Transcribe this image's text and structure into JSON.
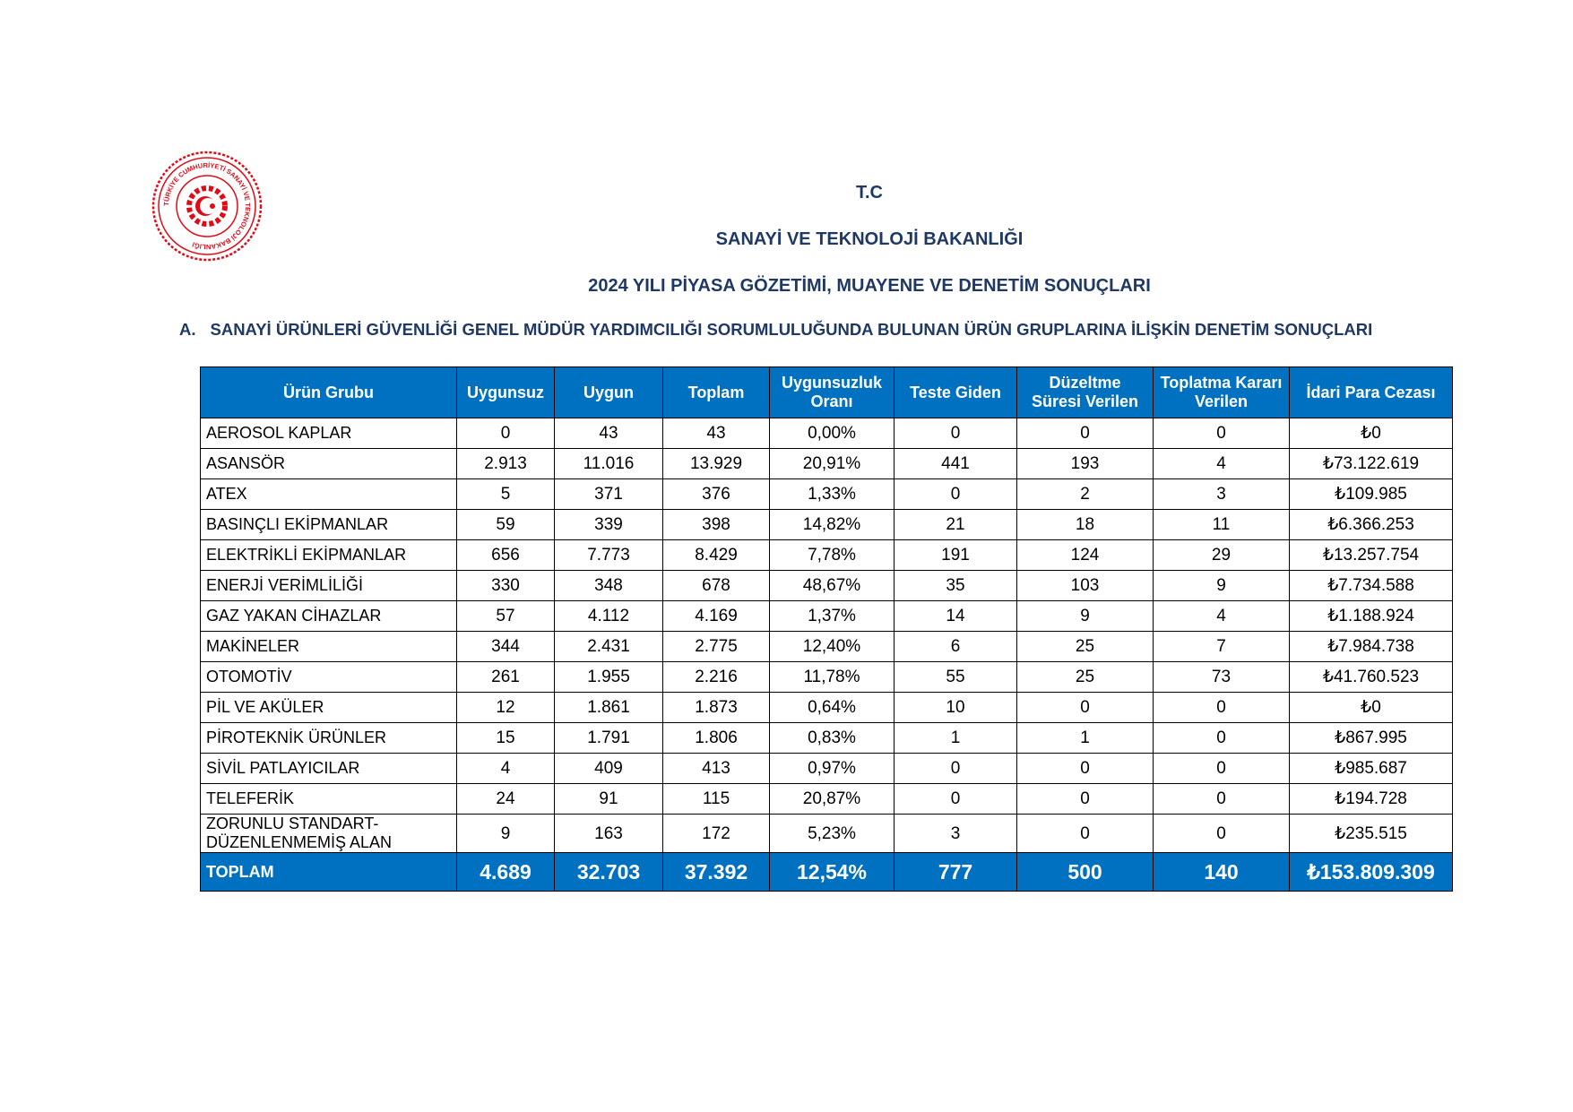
{
  "logo": {
    "text": "TÜRKİYE CUMHURİYETİ SANAYİ VE TEKNOLOJİ BAKANLIĞI"
  },
  "header": {
    "line1": "T.C",
    "line2": "SANAYİ VE TEKNOLOJİ BAKANLIĞI",
    "line3": "2024 YILI PİYASA GÖZETİMİ, MUAYENE VE DENETİM SONUÇLARI"
  },
  "section": {
    "number": "A.",
    "title": "SANAYİ ÜRÜNLERİ GÜVENLİĞİ GENEL MÜDÜR YARDIMCILIĞI SORUMLULUĞUNDA BULUNAN ÜRÜN GRUPLARINA İLİŞKİN DENETİM SONUÇLARI"
  },
  "table": {
    "columns": [
      "Ürün Grubu",
      "Uygunsuz",
      "Uygun",
      "Toplam",
      "Uygunsuzluk Oranı",
      "Teste Giden",
      "Düzeltme Süresi Verilen",
      "Toplatma Kararı Verilen",
      "İdari Para Cezası"
    ],
    "rows": [
      [
        "AEROSOL KAPLAR",
        "0",
        "43",
        "43",
        "0,00%",
        "0",
        "0",
        "0",
        "₺0"
      ],
      [
        "ASANSÖR",
        "2.913",
        "11.016",
        "13.929",
        "20,91%",
        "441",
        "193",
        "4",
        "₺73.122.619"
      ],
      [
        "ATEX",
        "5",
        "371",
        "376",
        "1,33%",
        "0",
        "2",
        "3",
        "₺109.985"
      ],
      [
        "BASINÇLI EKİPMANLAR",
        "59",
        "339",
        "398",
        "14,82%",
        "21",
        "18",
        "11",
        "₺6.366.253"
      ],
      [
        "ELEKTRİKLİ EKİPMANLAR",
        "656",
        "7.773",
        "8.429",
        "7,78%",
        "191",
        "124",
        "29",
        "₺13.257.754"
      ],
      [
        "ENERJİ VERİMLİLİĞİ",
        "330",
        "348",
        "678",
        "48,67%",
        "35",
        "103",
        "9",
        "₺7.734.588"
      ],
      [
        "GAZ YAKAN CİHAZLAR",
        "57",
        "4.112",
        "4.169",
        "1,37%",
        "14",
        "9",
        "4",
        "₺1.188.924"
      ],
      [
        "MAKİNELER",
        "344",
        "2.431",
        "2.775",
        "12,40%",
        "6",
        "25",
        "7",
        "₺7.984.738"
      ],
      [
        "OTOMOTİV",
        "261",
        "1.955",
        "2.216",
        "11,78%",
        "55",
        "25",
        "73",
        "₺41.760.523"
      ],
      [
        "PİL VE AKÜLER",
        "12",
        "1.861",
        "1.873",
        "0,64%",
        "10",
        "0",
        "0",
        "₺0"
      ],
      [
        "PİROTEKNİK ÜRÜNLER",
        "15",
        "1.791",
        "1.806",
        "0,83%",
        "1",
        "1",
        "0",
        "₺867.995"
      ],
      [
        "SİVİL PATLAYICILAR",
        "4",
        "409",
        "413",
        "0,97%",
        "0",
        "0",
        "0",
        "₺985.687"
      ],
      [
        "TELEFERİK",
        "24",
        "91",
        "115",
        "20,87%",
        "0",
        "0",
        "0",
        "₺194.728"
      ],
      [
        "ZORUNLU STANDART-DÜZENLENMEMİŞ ALAN",
        "9",
        "163",
        "172",
        "5,23%",
        "3",
        "0",
        "0",
        "₺235.515"
      ]
    ],
    "total": [
      "TOPLAM",
      "4.689",
      "32.703",
      "37.392",
      "12,54%",
      "777",
      "500",
      "140",
      "₺153.809.309"
    ]
  }
}
